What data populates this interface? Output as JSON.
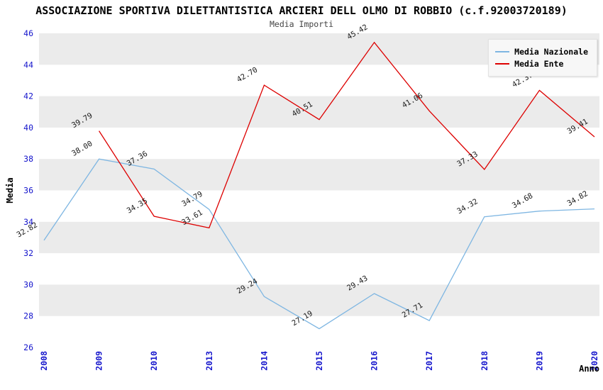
{
  "chart_data": {
    "type": "line",
    "title": "ASSOCIAZIONE SPORTIVA DILETTANTISTICA ARCIERI DELL OLMO DI ROBBIO (c.f.92003720189)",
    "subtitle": "Media Importi",
    "xlabel": "Anno",
    "ylabel": "Media",
    "ylim": [
      26,
      46
    ],
    "y_tick_step": 2,
    "grid": "alternating-bands",
    "legend_position": "top-right",
    "categories": [
      "2008",
      "2009",
      "2010",
      "2013",
      "2014",
      "2015",
      "2016",
      "2017",
      "2018",
      "2019",
      "2020"
    ],
    "series": [
      {
        "name": "Media Nazionale",
        "color": "#7eb6e2",
        "values": [
          32.82,
          38.0,
          37.36,
          34.79,
          29.24,
          27.19,
          29.43,
          27.71,
          34.32,
          34.68,
          34.82
        ]
      },
      {
        "name": "Media Ente",
        "color": "#dd0000",
        "values": [
          null,
          39.79,
          34.35,
          33.61,
          42.7,
          40.51,
          45.42,
          41.06,
          37.33,
          42.37,
          39.41
        ]
      }
    ],
    "colors": {
      "band": "#ebebeb",
      "background": "#ffffff",
      "tick_label": "#1515cc",
      "data_label": "#1a1a1a",
      "axis_title": "#000000"
    }
  }
}
